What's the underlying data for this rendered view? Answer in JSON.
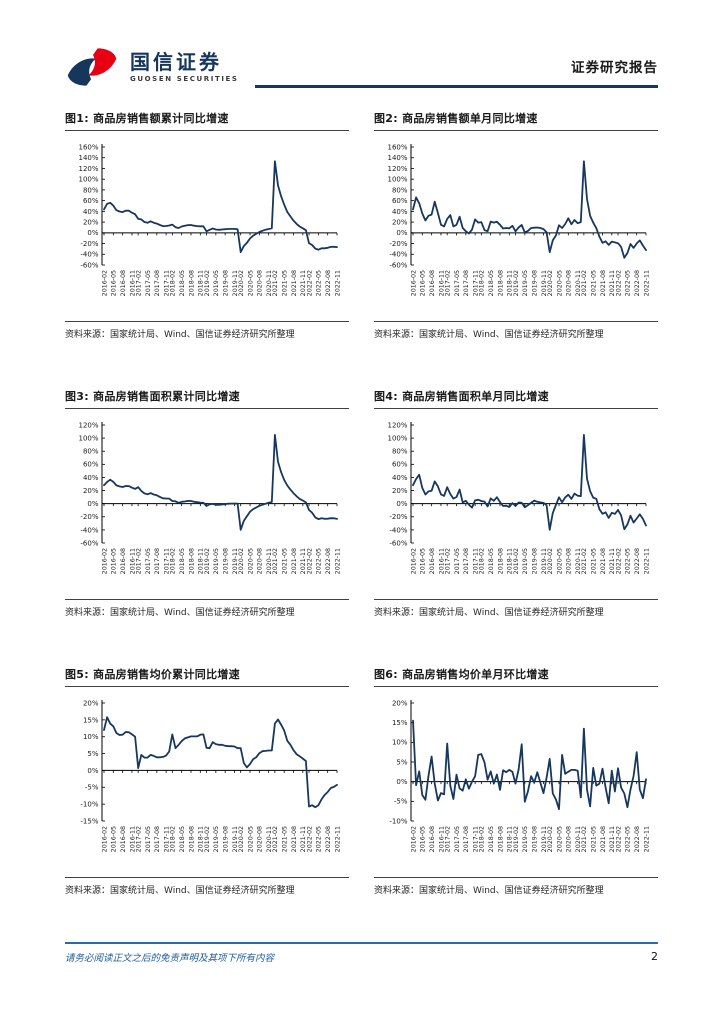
{
  "header": {
    "brand_cn": "国信证券",
    "brand_en": "GUOSEN SECURITIES",
    "report_type": "证券研究报告",
    "brand_navy": "#16365c",
    "brand_red": "#e60012"
  },
  "source_note": "资料来源：国家统计局、Wind、国信证券经济研究所整理",
  "footer": {
    "disclaimer": "请务必阅读正文之后的免责声明及其项下所有内容",
    "page_number": "2"
  },
  "months": [
    "2016-02",
    "2016-03",
    "2016-04",
    "2016-05",
    "2016-06",
    "2016-07",
    "2016-08",
    "2016-09",
    "2016-10",
    "2016-11",
    "2016-12",
    "2017-02",
    "2017-03",
    "2017-04",
    "2017-05",
    "2017-06",
    "2017-07",
    "2017-08",
    "2017-09",
    "2017-10",
    "2017-11",
    "2017-12",
    "2018-02",
    "2018-03",
    "2018-04",
    "2018-05",
    "2018-06",
    "2018-07",
    "2018-08",
    "2018-09",
    "2018-10",
    "2018-11",
    "2018-12",
    "2019-02",
    "2019-03",
    "2019-04",
    "2019-05",
    "2019-06",
    "2019-07",
    "2019-08",
    "2019-09",
    "2019-10",
    "2019-11",
    "2019-12",
    "2020-02",
    "2020-03",
    "2020-04",
    "2020-05",
    "2020-06",
    "2020-07",
    "2020-08",
    "2020-09",
    "2020-10",
    "2020-11",
    "2020-12",
    "2021-02",
    "2021-03",
    "2021-04",
    "2021-05",
    "2021-06",
    "2021-07",
    "2021-08",
    "2021-09",
    "2021-10",
    "2021-11",
    "2021-12",
    "2022-02",
    "2022-03",
    "2022-04",
    "2022-05",
    "2022-06",
    "2022-07",
    "2022-08",
    "2022-09",
    "2022-10",
    "2022-11"
  ],
  "chart_data": [
    {
      "type": "line",
      "title": "图1: 商品房销售额累计同比增速",
      "x_ref": "months",
      "x_tick_months": [
        "02",
        "05",
        "08",
        "11"
      ],
      "ylim": [
        -60,
        160
      ],
      "ytick_step": 20,
      "line_color": "#17375e",
      "grid": false,
      "legend": "none",
      "series": [
        {
          "name": "商品房销售额累计同比增速",
          "values": [
            43.6,
            54.1,
            55.9,
            50.7,
            42.1,
            39.8,
            38.7,
            41.3,
            41.2,
            37.5,
            34.8,
            26.0,
            25.1,
            20.1,
            18.6,
            21.5,
            18.9,
            17.2,
            14.6,
            12.6,
            12.7,
            13.7,
            15.3,
            10.4,
            9.0,
            11.8,
            13.2,
            14.4,
            14.5,
            13.3,
            12.5,
            12.1,
            12.2,
            2.8,
            5.6,
            8.1,
            6.1,
            5.6,
            6.2,
            6.7,
            7.1,
            7.3,
            7.3,
            6.5,
            -35.9,
            -24.7,
            -18.6,
            -10.6,
            -5.4,
            -2.1,
            1.6,
            3.8,
            5.8,
            7.2,
            8.7,
            133.4,
            88.5,
            68.2,
            52.4,
            38.9,
            30.7,
            22.8,
            16.6,
            11.8,
            8.5,
            4.8,
            -19.3,
            -22.7,
            -29.5,
            -31.5,
            -28.9,
            -28.8,
            -27.9,
            -26.3,
            -26.1,
            -26.6
          ]
        }
      ]
    },
    {
      "type": "line",
      "title": "图2: 商品房销售额单月同比增速",
      "x_ref": "months",
      "x_tick_months": [
        "02",
        "05",
        "08",
        "11"
      ],
      "ylim": [
        -60,
        160
      ],
      "ytick_step": 20,
      "line_color": "#17375e",
      "grid": false,
      "legend": "none",
      "series": [
        {
          "name": "商品房销售额单月同比增速",
          "values": [
            43.6,
            66.0,
            55.0,
            36.0,
            23.0,
            32.0,
            34.0,
            58.0,
            37.0,
            15.0,
            12.0,
            26.0,
            33.0,
            12.0,
            15.0,
            30.0,
            9.0,
            3.0,
            -1.5,
            6.0,
            25.0,
            19.0,
            20.0,
            5.0,
            3.0,
            21.0,
            19.0,
            20.5,
            15.0,
            8.0,
            9.0,
            8.5,
            13.0,
            2.8,
            10.0,
            14.5,
            0.5,
            3.5,
            9.0,
            9.5,
            10.0,
            9.0,
            7.0,
            1.0,
            -35.9,
            -14.0,
            -5.0,
            14.0,
            9.0,
            16.5,
            27.1,
            16.0,
            23.9,
            18.0,
            20.0,
            133.4,
            63.0,
            32.0,
            19.0,
            8.6,
            -7.1,
            -18.7,
            -15.8,
            -22.6,
            -16.3,
            -17.8,
            -19.3,
            -26.2,
            -46.6,
            -37.7,
            -20.8,
            -28.2,
            -19.9,
            -14.2,
            -23.7,
            -32.2
          ]
        }
      ]
    },
    {
      "type": "line",
      "title": "图3: 商品房销售面积累计同比增速",
      "x_ref": "months",
      "x_tick_months": [
        "02",
        "05",
        "08",
        "11"
      ],
      "ylim": [
        -60,
        120
      ],
      "ytick_step": 20,
      "line_color": "#17375e",
      "grid": false,
      "legend": "none",
      "series": [
        {
          "name": "商品房销售面积累计同比增速",
          "values": [
            28.2,
            33.1,
            36.5,
            33.2,
            27.9,
            26.4,
            25.5,
            26.9,
            26.8,
            24.3,
            22.5,
            25.1,
            19.5,
            15.7,
            14.3,
            16.1,
            14.0,
            12.7,
            10.3,
            8.2,
            7.9,
            7.7,
            4.1,
            3.6,
            1.3,
            2.9,
            3.3,
            4.2,
            4.0,
            2.9,
            2.2,
            1.4,
            1.3,
            -3.6,
            -0.9,
            -0.3,
            -1.6,
            -1.8,
            -1.3,
            -0.6,
            -0.1,
            0.1,
            0.2,
            -0.1,
            -39.9,
            -26.3,
            -19.3,
            -12.3,
            -8.4,
            -5.8,
            -3.3,
            -1.8,
            0.0,
            1.3,
            2.6,
            104.9,
            63.8,
            48.1,
            36.3,
            27.7,
            21.5,
            15.9,
            11.3,
            7.3,
            4.8,
            1.9,
            -9.6,
            -13.8,
            -20.9,
            -23.6,
            -22.2,
            -23.1,
            -23.0,
            -22.2,
            -22.3,
            -23.3
          ]
        }
      ]
    },
    {
      "type": "line",
      "title": "图4: 商品房销售面积单月同比增速",
      "x_ref": "months",
      "x_tick_months": [
        "02",
        "05",
        "08",
        "11"
      ],
      "ylim": [
        -60,
        120
      ],
      "ytick_step": 20,
      "line_color": "#17375e",
      "grid": false,
      "legend": "none",
      "series": [
        {
          "name": "商品房销售面积单月同比增速",
          "values": [
            28.2,
            37.7,
            44.1,
            24.0,
            14.0,
            18.7,
            19.8,
            34.0,
            26.4,
            14.1,
            11.8,
            25.1,
            14.7,
            7.7,
            10.2,
            21.4,
            2.0,
            4.3,
            -1.5,
            -6.0,
            5.0,
            6.0,
            4.1,
            3.2,
            -4.1,
            8.0,
            4.4,
            9.9,
            2.4,
            -3.6,
            -3.1,
            -5.1,
            0.9,
            -3.6,
            1.8,
            1.3,
            -5.5,
            -2.2,
            1.2,
            4.7,
            2.9,
            1.9,
            1.1,
            -2.3,
            -39.9,
            -14.1,
            -2.1,
            9.7,
            2.1,
            9.5,
            13.7,
            7.3,
            15.3,
            12.1,
            11.5,
            104.9,
            38.1,
            19.2,
            9.2,
            7.5,
            -8.5,
            -15.5,
            -13.2,
            -21.7,
            -14.0,
            -15.6,
            -9.6,
            -17.7,
            -39.0,
            -31.8,
            -18.3,
            -28.9,
            -22.6,
            -16.2,
            -23.2,
            -33.3
          ]
        }
      ]
    },
    {
      "type": "line",
      "title": "图5: 商品房销售均价累计同比增速",
      "x_ref": "months",
      "x_tick_months": [
        "02",
        "05",
        "08",
        "11"
      ],
      "ylim": [
        -15,
        20
      ],
      "ytick_step": 5,
      "line_color": "#17375e",
      "grid": false,
      "legend": "none",
      "series": [
        {
          "name": "商品房销售均价累计同比增速",
          "values": [
            12.0,
            15.8,
            13.9,
            13.1,
            11.1,
            10.5,
            10.6,
            11.4,
            11.3,
            10.7,
            10.0,
            0.7,
            4.6,
            3.8,
            3.8,
            4.6,
            4.3,
            3.9,
            3.9,
            4.0,
            4.4,
            5.6,
            10.7,
            6.6,
            7.6,
            8.7,
            9.5,
            9.8,
            10.1,
            10.1,
            10.1,
            10.6,
            10.7,
            6.7,
            6.6,
            8.4,
            7.8,
            7.6,
            7.6,
            7.3,
            7.2,
            7.2,
            7.1,
            6.6,
            6.6,
            2.2,
            0.9,
            1.9,
            3.3,
            3.9,
            5.1,
            5.7,
            5.8,
            5.9,
            5.9,
            13.9,
            15.1,
            13.6,
            11.8,
            8.8,
            7.6,
            6.0,
            4.8,
            4.2,
            3.5,
            2.8,
            -10.7,
            -10.3,
            -10.9,
            -10.3,
            -8.6,
            -7.3,
            -6.4,
            -5.2,
            -4.9,
            -4.3
          ]
        }
      ]
    },
    {
      "type": "line",
      "title": "图6: 商品房销售均价单月环比增速",
      "x_ref": "months",
      "x_tick_months": [
        "02",
        "05",
        "08",
        "11"
      ],
      "ylim": [
        -10,
        20
      ],
      "ytick_step": 5,
      "line_color": "#17375e",
      "grid": false,
      "legend": "none",
      "series": [
        {
          "name": "商品房销售均价单月环比增速",
          "values": [
            15.5,
            -0.9,
            2.6,
            -3.4,
            -4.6,
            1.5,
            6.4,
            -0.5,
            -4.8,
            -2.9,
            -3.2,
            9.7,
            -1.0,
            -4.4,
            1.8,
            -1.7,
            -2.3,
            0.6,
            -1.8,
            0.0,
            1.4,
            6.8,
            7.0,
            4.9,
            0.5,
            2.6,
            -0.5,
            1.8,
            -2.1,
            2.9,
            2.4,
            3.0,
            2.5,
            -0.5,
            3.1,
            9.5,
            -5.1,
            -2.5,
            1.4,
            -0.2,
            2.4,
            -0.3,
            -2.9,
            1.0,
            5.8,
            -3.0,
            -4.5,
            -7.0,
            6.8,
            2.0,
            2.5,
            3.0,
            3.0,
            2.8,
            -4.0,
            13.5,
            -2.0,
            -6.3,
            3.5,
            -1.0,
            -0.5,
            3.3,
            -1.5,
            -5.5,
            2.8,
            -2.5,
            3.4,
            -1.5,
            -3.0,
            -6.5,
            -2.0,
            1.5,
            7.5,
            -2.0,
            -4.2,
            0.6
          ]
        }
      ]
    }
  ]
}
